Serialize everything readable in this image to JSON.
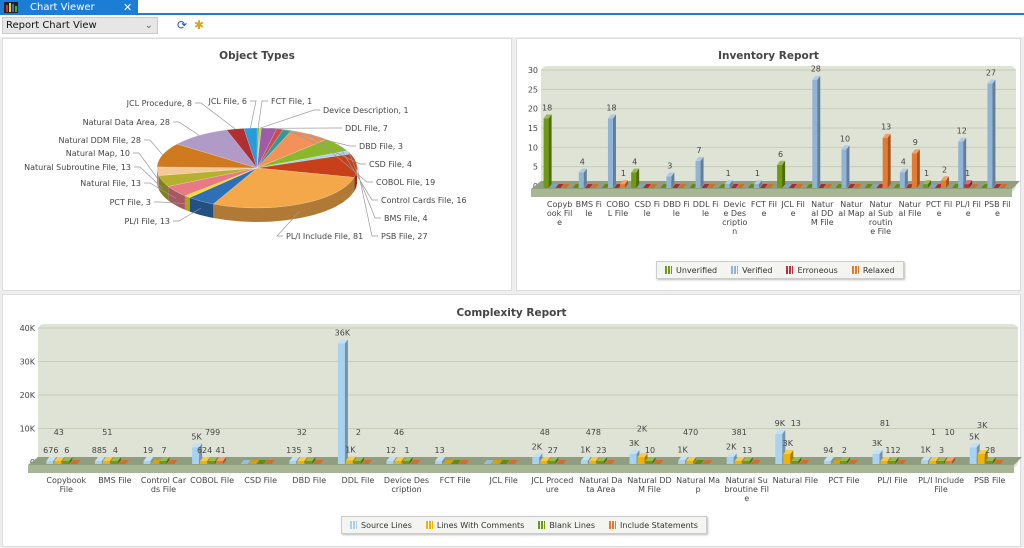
{
  "tab": {
    "title": "Chart Viewer",
    "close": "✕",
    "icon": "chart-app-icon"
  },
  "toolbar": {
    "view_select": "Report Chart View",
    "refresh_icon": "refresh-icon",
    "pin_icon": "pin-icon"
  },
  "chart_data": [
    {
      "type": "pie",
      "title": "Object Types",
      "slices": [
        {
          "name": "FCT File",
          "value": 1,
          "color": "#7fb020"
        },
        {
          "name": "Device Description",
          "value": 1,
          "color": "#b5d36a"
        },
        {
          "name": "DDL File",
          "value": 7,
          "color": "#9d5ba8"
        },
        {
          "name": "DBD File",
          "value": 3,
          "color": "#d04a4a"
        },
        {
          "name": "CSD File",
          "value": 4,
          "color": "#2a9d9a"
        },
        {
          "name": "COBOL File",
          "value": 19,
          "color": "#f2925a"
        },
        {
          "name": "Control Cards File",
          "value": 16,
          "color": "#8ab82a"
        },
        {
          "name": "BMS File",
          "value": 4,
          "color": "#a8d2ef"
        },
        {
          "name": "PSB File",
          "value": 27,
          "color": "#c8401a"
        },
        {
          "name": "PL/I Include File",
          "value": 81,
          "color": "#f5a84a"
        },
        {
          "name": "PL/I File",
          "value": 13,
          "color": "#2f6fb5"
        },
        {
          "name": "PCT File",
          "value": 3,
          "color": "#f0e020"
        },
        {
          "name": "Natural File",
          "value": 13,
          "color": "#e87a86"
        },
        {
          "name": "Natural Subroutine File",
          "value": 13,
          "color": "#b5b030"
        },
        {
          "name": "Natural Map",
          "value": 10,
          "color": "#f5c898"
        },
        {
          "name": "Natural DDM File",
          "value": 28,
          "color": "#d07a20"
        },
        {
          "name": "Natural Data Area",
          "value": 28,
          "color": "#b09ac8"
        },
        {
          "name": "JCL Procedure",
          "value": 8,
          "color": "#b03030"
        },
        {
          "name": "JCL File",
          "value": 6,
          "color": "#2a9ad8"
        }
      ]
    },
    {
      "type": "bar",
      "title": "Inventory Report",
      "ylim": [
        0,
        30
      ],
      "yticks": [
        "0",
        "5",
        "10",
        "15",
        "20",
        "25",
        "30"
      ],
      "categories": [
        "Copybook File",
        "BMS File",
        "COBOL File",
        "CSD File",
        "DBD File",
        "DDL File",
        "Device Description",
        "FCT File",
        "JCL File",
        "Natural DDM File",
        "Natural Map",
        "Natural Subroutine File",
        "Natural File",
        "PCT File",
        "PL/I File",
        "PSB File"
      ],
      "series": [
        {
          "name": "Unverified",
          "color": "#6e9a10",
          "values": [
            18,
            0,
            0,
            4,
            0,
            0,
            0,
            0,
            6,
            0,
            0,
            0,
            0,
            1,
            0,
            0
          ]
        },
        {
          "name": "Verified",
          "color": "#8fb4d8",
          "values": [
            0,
            4,
            18,
            0,
            3,
            7,
            1,
            1,
            0,
            28,
            10,
            0,
            4,
            0,
            12,
            27
          ]
        },
        {
          "name": "Erroneous",
          "color": "#c0303a",
          "values": [
            0,
            0,
            0,
            0,
            0,
            0,
            0,
            0,
            0,
            0,
            0,
            0,
            0,
            0,
            1,
            0
          ]
        },
        {
          "name": "Relaxed",
          "color": "#e87a30",
          "values": [
            0,
            0,
            1,
            0,
            0,
            0,
            0,
            0,
            0,
            0,
            0,
            13,
            9,
            2,
            0,
            0
          ]
        }
      ],
      "grid": true,
      "legend": "bottom"
    },
    {
      "type": "bar",
      "title": "Complexity Report",
      "ylim": [
        0,
        40000
      ],
      "yticks": [
        "0",
        "10K",
        "20K",
        "30K",
        "40K"
      ],
      "categories": [
        "Copybook File",
        "BMS File",
        "Control Cards File",
        "COBOL File",
        "CSD File",
        "DBD File",
        "DDL File",
        "Device Description",
        "FCT File",
        "JCL File",
        "JCL Procedure",
        "Natural Data Area",
        "Natural DDM File",
        "Natural Map",
        "Natural Subroutine File",
        "Natural File",
        "PCT File",
        "PL/I File",
        "PL/I Include File",
        "PSB File"
      ],
      "series": [
        {
          "name": "Source Lines",
          "color": "#a8d2f2",
          "values": [
            676,
            885,
            19,
            5000,
            0,
            135,
            36000,
            12,
            13,
            0,
            2000,
            1000,
            3000,
            1000,
            2000,
            9000,
            94,
            3000,
            1000,
            5000
          ]
        },
        {
          "name": "Lines With Comments",
          "color": "#f0b400",
          "values": [
            43,
            51,
            0,
            624,
            0,
            32,
            1000,
            46,
            0,
            0,
            48,
            478,
            2000,
            470,
            381,
            3000,
            0,
            81,
            1,
            3000
          ]
        },
        {
          "name": "Blank Lines",
          "color": "#6e9a10",
          "values": [
            6,
            4,
            7,
            799,
            0,
            3,
            2,
            1,
            0,
            0,
            27,
            23,
            10,
            0,
            13,
            13,
            2,
            112,
            3,
            28
          ]
        },
        {
          "name": "Include Statements",
          "color": "#e87a30",
          "values": [
            0,
            0,
            0,
            41,
            0,
            0,
            0,
            0,
            0,
            0,
            0,
            0,
            0,
            0,
            0,
            0,
            0,
            0,
            10,
            0
          ]
        }
      ],
      "grid": true,
      "legend": "bottom"
    }
  ]
}
